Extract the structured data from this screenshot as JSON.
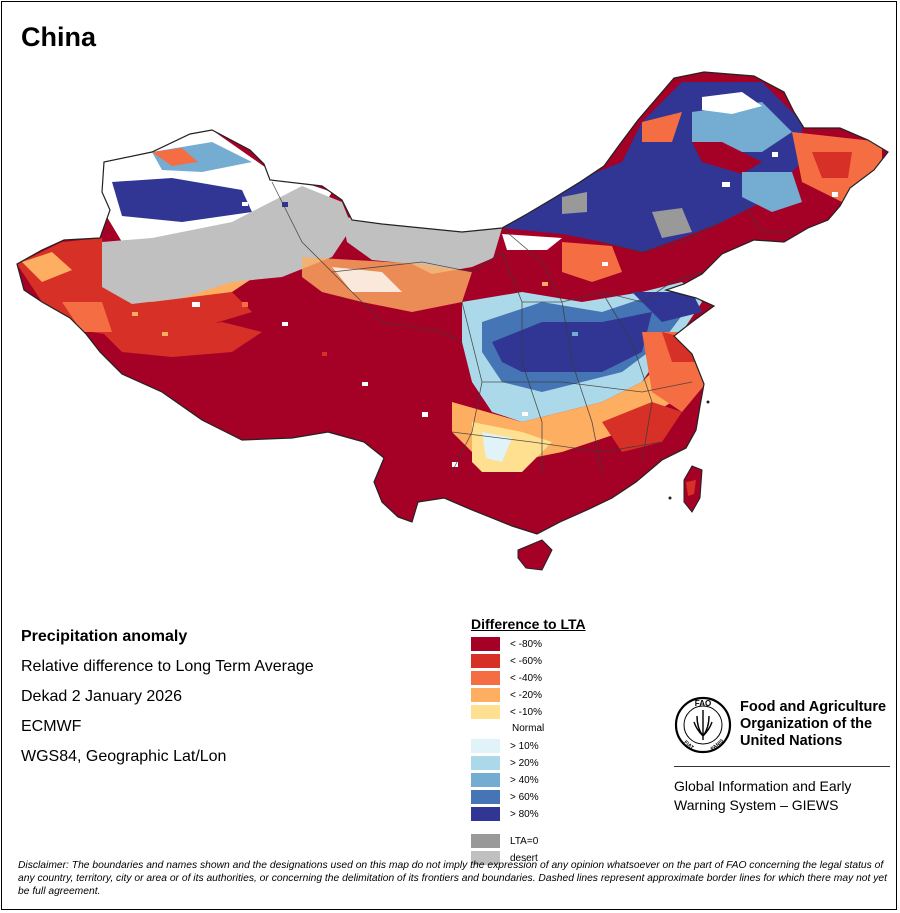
{
  "map": {
    "title": "China",
    "colors": {
      "border": "#3a3a3a",
      "desert": "#c0c0c0",
      "lta_zero": "#999999"
    }
  },
  "info": {
    "heading": "Precipitation anomaly",
    "lines": [
      "Relative difference to Long Term Average",
      "Dekad 2 January 2026",
      "ECMWF",
      "WGS84, Geographic Lat/Lon"
    ]
  },
  "legend": {
    "title": "Difference to LTA",
    "negative": [
      {
        "label": "< -80%",
        "color": "#a50026"
      },
      {
        "label": "< -60%",
        "color": "#d73027"
      },
      {
        "label": "< -40%",
        "color": "#f46d43"
      },
      {
        "label": "< -20%",
        "color": "#fdae61"
      },
      {
        "label": "< -10%",
        "color": "#fee090"
      }
    ],
    "normal_label": "Normal",
    "positive": [
      {
        "label": "> 10%",
        "color": "#e0f3f8"
      },
      {
        "label": "> 20%",
        "color": "#abd9e9"
      },
      {
        "label": "> 40%",
        "color": "#74add1"
      },
      {
        "label": "> 60%",
        "color": "#4575b4"
      },
      {
        "label": "> 80%",
        "color": "#313695"
      }
    ],
    "other": [
      {
        "label": "LTA=0",
        "color": "#999999"
      },
      {
        "label": "desert",
        "color": "#c0c0c0"
      }
    ]
  },
  "fao": {
    "name": "Food and Agriculture Organization of the United Nations",
    "logo_text": {
      "top": "FAO",
      "left": "FIAT",
      "right": "PANIS"
    },
    "giews": "Global Information and Early Warning System – GIEWS"
  },
  "disclaimer": "Disclaimer: The boundaries and names shown and the designations used on this map do not imply the expression of any opinion whatsoever on the part of FAO concerning the legal status of any country, territory, city or area or of its authorities, or concerning the delimitation of its frontiers and boundaries. Dashed lines represent approximate border lines for which there may not yet be full agreement."
}
